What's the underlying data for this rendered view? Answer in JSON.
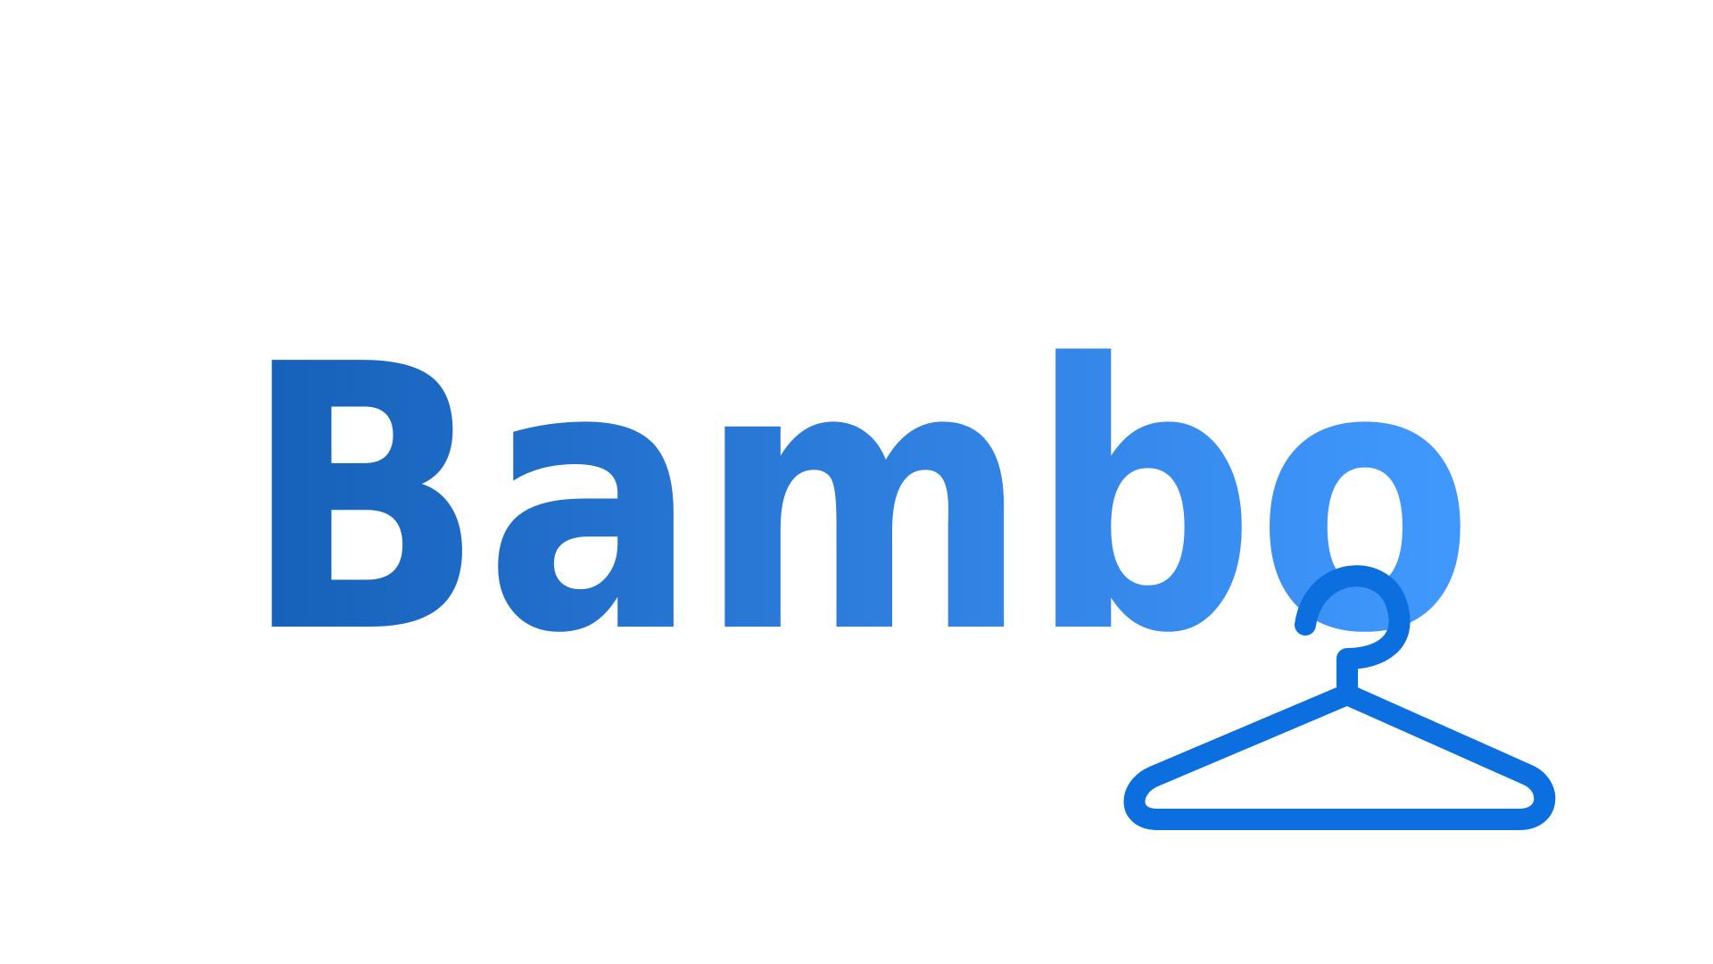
{
  "logo": {
    "wordmark": "Bambo",
    "icon": "clothes-hanger-icon",
    "colors": {
      "gradient_start": "#1560b8",
      "gradient_mid": "#2f80e0",
      "gradient_end": "#4199ff",
      "hanger": "#0b6fe0",
      "background": "#ffffff"
    }
  }
}
